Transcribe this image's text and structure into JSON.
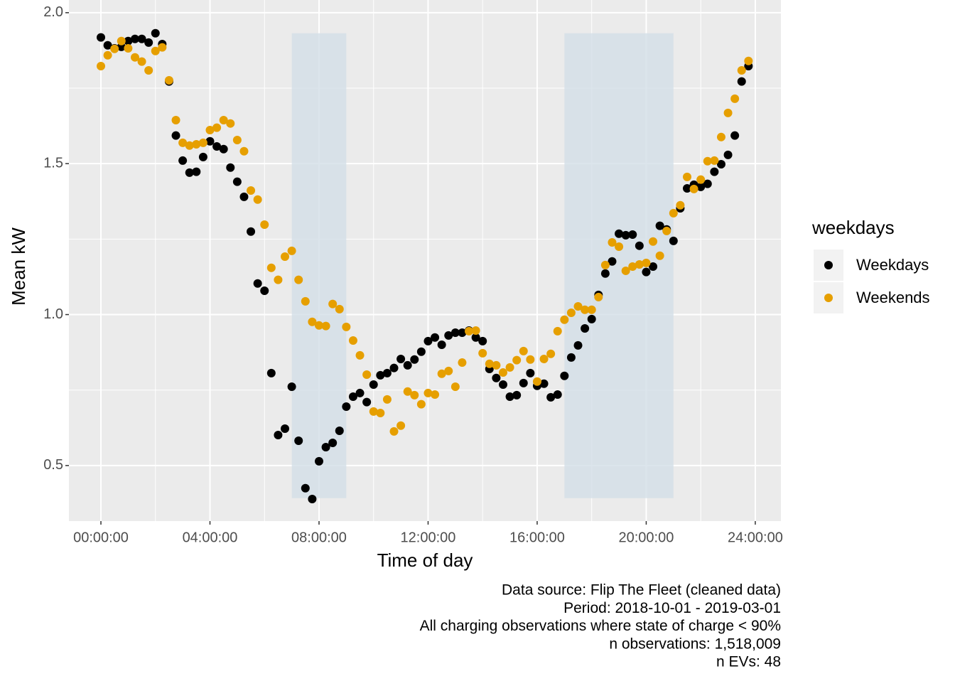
{
  "chart_data": {
    "type": "scatter",
    "x_label": "Time of day",
    "y_label": "Mean kW",
    "legend_title": "weekdays",
    "legend_position": "right",
    "caption": [
      "Data source: Flip The Fleet (cleaned data)",
      "Period: 2018-10-01 - 2019-03-01",
      "All charging observations where state of charge < 90%",
      "n observations: 1,518,009",
      "n EVs: 48"
    ],
    "xlim": [
      -1.173,
      24.94
    ],
    "ylim": [
      0.316,
      2.042
    ],
    "xticks": [
      {
        "value": 0,
        "label": "00:00:00"
      },
      {
        "value": 4,
        "label": "04:00:00"
      },
      {
        "value": 8,
        "label": "08:00:00"
      },
      {
        "value": 12,
        "label": "12:00:00"
      },
      {
        "value": 16,
        "label": "16:00:00"
      },
      {
        "value": 20,
        "label": "20:00:00"
      },
      {
        "value": 24,
        "label": "24:00:00"
      }
    ],
    "yticks": [
      {
        "value": 0.5,
        "label": "0.5"
      },
      {
        "value": 1,
        "label": "1.0"
      },
      {
        "value": 1.5,
        "label": "1.5"
      },
      {
        "value": 2,
        "label": "2.0"
      }
    ],
    "grid": true,
    "shaded_periods": [
      {
        "xmin": 7,
        "xmax": 9,
        "ymin": 0.392,
        "ymax": 1.932
      },
      {
        "xmin": 17,
        "xmax": 21,
        "ymin": 0.392,
        "ymax": 1.932
      }
    ],
    "shade_color": "#d3dfe7",
    "x": [
      0,
      0.25,
      0.5,
      0.75,
      1,
      1.25,
      1.5,
      1.75,
      2,
      2.25,
      2.5,
      2.75,
      3,
      3.25,
      3.5,
      3.75,
      4,
      4.25,
      4.5,
      4.75,
      5,
      5.25,
      5.5,
      5.75,
      6,
      6.25,
      6.5,
      6.75,
      7,
      7.25,
      7.5,
      7.75,
      8,
      8.25,
      8.5,
      8.75,
      9,
      9.25,
      9.5,
      9.75,
      10,
      10.25,
      10.5,
      10.75,
      11,
      11.25,
      11.5,
      11.75,
      12,
      12.25,
      12.5,
      12.75,
      13,
      13.25,
      13.5,
      13.75,
      14,
      14.25,
      14.5,
      14.75,
      15,
      15.25,
      15.5,
      15.75,
      16,
      16.25,
      16.5,
      16.75,
      17,
      17.25,
      17.5,
      17.75,
      18,
      18.25,
      18.5,
      18.75,
      19,
      19.25,
      19.5,
      19.75,
      20,
      20.25,
      20.5,
      20.75,
      21,
      21.25,
      21.5,
      21.75,
      22,
      22.25,
      22.5,
      22.75,
      23,
      23.25,
      23.5,
      23.75
    ],
    "series": [
      {
        "name": "Weekdays",
        "color": "#000000",
        "values": [
          1.918,
          1.892,
          1.882,
          1.887,
          1.906,
          1.913,
          1.913,
          1.901,
          1.932,
          1.896,
          1.772,
          1.593,
          1.51,
          1.47,
          1.473,
          1.522,
          1.574,
          1.557,
          1.548,
          1.487,
          1.44,
          1.39,
          1.275,
          1.103,
          1.079,
          0.806,
          0.601,
          0.622,
          0.761,
          0.582,
          0.425,
          0.389,
          0.514,
          0.561,
          0.575,
          0.615,
          0.695,
          0.728,
          0.74,
          0.71,
          0.768,
          0.799,
          0.806,
          0.823,
          0.853,
          0.832,
          0.851,
          0.877,
          0.912,
          0.924,
          0.9,
          0.931,
          0.94,
          0.94,
          0.947,
          0.924,
          0.912,
          0.82,
          0.79,
          0.768,
          0.728,
          0.733,
          0.773,
          0.806,
          0.764,
          0.771,
          0.726,
          0.735,
          0.797,
          0.858,
          0.898,
          0.954,
          0.985,
          1.065,
          1.136,
          1.176,
          1.268,
          1.263,
          1.265,
          1.228,
          1.141,
          1.159,
          1.294,
          1.282,
          1.244,
          1.352,
          1.418,
          1.43,
          1.423,
          1.433,
          1.473,
          1.498,
          1.529,
          1.593,
          1.772,
          1.823
        ]
      },
      {
        "name": "Weekends",
        "color": "#E69F00",
        "values": [
          1.823,
          1.859,
          1.88,
          1.906,
          1.882,
          1.852,
          1.838,
          1.809,
          1.873,
          1.885,
          1.776,
          1.644,
          1.569,
          1.56,
          1.564,
          1.569,
          1.611,
          1.619,
          1.644,
          1.633,
          1.578,
          1.541,
          1.411,
          1.381,
          1.298,
          1.155,
          1.115,
          1.192,
          1.211,
          1.115,
          1.044,
          0.976,
          0.964,
          0.962,
          1.035,
          1.018,
          0.959,
          0.914,
          0.865,
          0.801,
          0.679,
          0.674,
          0.719,
          0.613,
          0.632,
          0.745,
          0.733,
          0.703,
          0.74,
          0.735,
          0.804,
          0.813,
          0.761,
          0.841,
          0.945,
          0.947,
          0.872,
          0.837,
          0.832,
          0.808,
          0.825,
          0.849,
          0.879,
          0.851,
          0.778,
          0.853,
          0.87,
          0.945,
          0.983,
          1.006,
          1.027,
          1.016,
          1.016,
          1.058,
          1.164,
          1.239,
          1.225,
          1.145,
          1.159,
          1.166,
          1.171,
          1.242,
          1.195,
          1.277,
          1.336,
          1.362,
          1.456,
          1.416,
          1.447,
          1.508,
          1.51,
          1.588,
          1.668,
          1.715,
          1.809,
          1.84
        ]
      }
    ]
  }
}
